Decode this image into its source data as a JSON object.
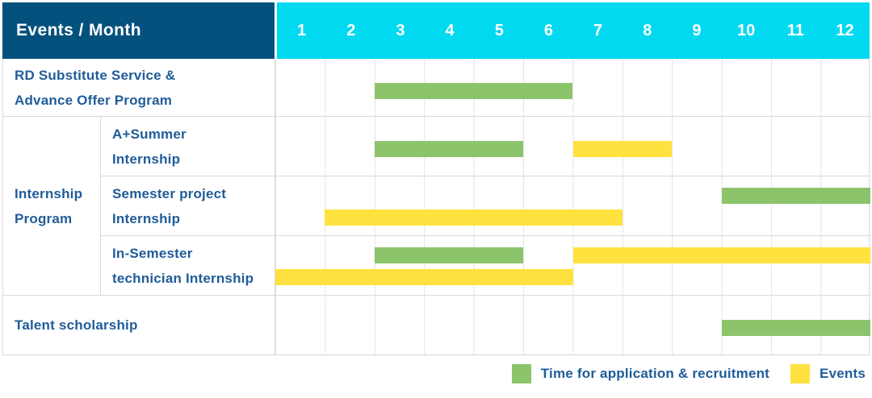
{
  "header": {
    "title": "Events / Month",
    "months": [
      "1",
      "2",
      "3",
      "4",
      "5",
      "6",
      "7",
      "8",
      "9",
      "10",
      "11",
      "12"
    ]
  },
  "group_label": "Internship\nProgram",
  "chart_data": {
    "type": "bar",
    "variant": "gantt-table",
    "title": "Events / Month",
    "x_categories": [
      "1",
      "2",
      "3",
      "4",
      "5",
      "6",
      "7",
      "8",
      "9",
      "10",
      "11",
      "12"
    ],
    "x_range": [
      1,
      12
    ],
    "grid": true,
    "legend_position": "bottom-right",
    "series_legend": [
      {
        "name": "Time for application & recruitment",
        "color": "#8cc46c"
      },
      {
        "name": "Events",
        "color": "#ffe23f"
      }
    ],
    "rows": [
      {
        "label": "RD Substitute Service &\nAdvance Offer Program",
        "group": "",
        "bars": [
          {
            "series": "Time for application & recruitment",
            "color_key": "green",
            "start_month": 3,
            "end_month": 6,
            "line": "single"
          }
        ]
      },
      {
        "label": "A+Summer\nInternship",
        "group": "Internship Program",
        "bars": [
          {
            "series": "Time for application & recruitment",
            "color_key": "green",
            "start_month": 3,
            "end_month": 5,
            "line": "single"
          },
          {
            "series": "Events",
            "color_key": "yellow",
            "start_month": 7,
            "end_month": 8,
            "line": "single"
          }
        ]
      },
      {
        "label": "Semester project\nInternship",
        "group": "Internship Program",
        "bars": [
          {
            "series": "Time for application & recruitment",
            "color_key": "green",
            "start_month": 10,
            "end_month": 12,
            "line": "top"
          },
          {
            "series": "Events",
            "color_key": "yellow",
            "start_month": 2,
            "end_month": 7,
            "line": "bottom"
          }
        ]
      },
      {
        "label": "In-Semester\ntechnician Internship",
        "group": "Internship Program",
        "bars": [
          {
            "series": "Time for application & recruitment",
            "color_key": "green",
            "start_month": 3,
            "end_month": 5,
            "line": "top"
          },
          {
            "series": "Events",
            "color_key": "yellow",
            "start_month": 7,
            "end_month": 12,
            "line": "top"
          },
          {
            "series": "Events",
            "color_key": "yellow",
            "start_month": 1,
            "end_month": 6,
            "line": "bottom"
          }
        ]
      },
      {
        "label": "Talent scholarship",
        "group": "",
        "bars": [
          {
            "series": "Time for application & recruitment",
            "color_key": "green",
            "start_month": 10,
            "end_month": 12,
            "line": "single"
          }
        ]
      }
    ]
  },
  "legend": {
    "items": [
      {
        "label": "Time for application & recruitment",
        "color_key": "green",
        "color": "#8cc46c"
      },
      {
        "label": "Events",
        "color_key": "yellow",
        "color": "#ffe23f"
      }
    ]
  },
  "colors": {
    "header_bg": "#05517e",
    "months_bg": "#00d9ef",
    "label_text": "#1f5c99",
    "green": "#8cc46c",
    "yellow": "#ffe23f",
    "grid_line": "#e4e4e4",
    "row_line": "#d9d9d9"
  }
}
